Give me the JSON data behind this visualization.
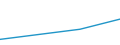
{
  "x": [
    1995,
    1996,
    1997,
    1998,
    1999,
    2000,
    2001,
    2002,
    2003,
    2004,
    2005,
    2006,
    2007,
    2008,
    2009,
    2010,
    2011,
    2012,
    2013,
    2014,
    2015,
    2016,
    2017,
    2018,
    2019,
    2020,
    2021,
    2022
  ],
  "y": [
    100,
    100.5,
    101,
    101.5,
    102,
    102.5,
    103,
    103.5,
    104,
    104.5,
    105,
    105.5,
    106,
    106.5,
    107,
    107.5,
    108,
    108.5,
    109,
    110,
    111,
    112,
    113,
    114,
    115,
    116,
    117,
    118
  ],
  "line_color": "#2196c8",
  "line_width": 1.0,
  "background_color": "#ffffff",
  "legend_box_color": "#1a1a1a",
  "ylim": [
    95,
    135
  ],
  "xlim": [
    1995,
    2022
  ]
}
